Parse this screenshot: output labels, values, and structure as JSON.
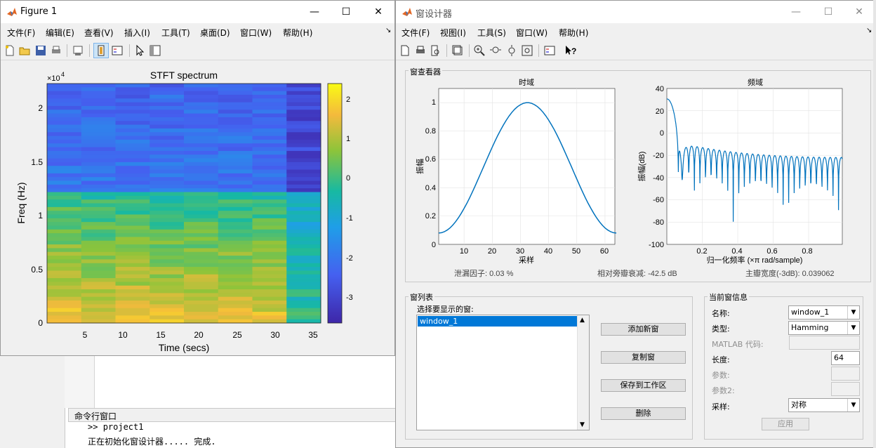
{
  "figure": {
    "title": "Figure 1",
    "menus": [
      "文件(F)",
      "编辑(E)",
      "查看(V)",
      "插入(I)",
      "工具(T)",
      "桌面(D)",
      "窗口(W)",
      "帮助(H)"
    ],
    "chart_data": {
      "type": "heatmap",
      "title": "STFT spectrum",
      "xlabel": "Time (secs)",
      "ylabel": "Freq (Hz)",
      "y_exponent_label": "×10",
      "y_exponent_power": "4",
      "xticks": [
        "5",
        "10",
        "15",
        "20",
        "25",
        "30",
        "35"
      ],
      "yticks": [
        "0",
        "0.5",
        "1",
        "1.5",
        "2"
      ],
      "colorbar_ticks": [
        "2",
        "1",
        "0",
        "-1",
        "-2",
        "-3"
      ]
    }
  },
  "designer": {
    "title": "窗设计器",
    "menus": [
      "文件(F)",
      "视图(I)",
      "工具(S)",
      "窗口(W)",
      "帮助(H)"
    ],
    "viewer": {
      "group_label": "窗查看器",
      "time_title": "时域",
      "freq_title": "频域",
      "time_ylabel": "振幅",
      "time_xlabel": "采样",
      "freq_ylabel": "振幅(dB)",
      "freq_xlabel": "归一化频率 (×π rad/sample)",
      "time_xticks": [
        "10",
        "20",
        "30",
        "40",
        "50",
        "60"
      ],
      "time_yticks": [
        "0",
        "0.2",
        "0.4",
        "0.6",
        "0.8",
        "1"
      ],
      "freq_xticks": [
        "0.2",
        "0.4",
        "0.6",
        "0.8"
      ],
      "freq_yticks": [
        "40",
        "20",
        "0",
        "-20",
        "-40",
        "-60",
        "-80",
        "-100"
      ],
      "leakage": "泄漏因子: 0.03 %",
      "sidelobe": "相对旁瓣衰减: -42.5 dB",
      "mainlobe": "主瓣宽度(-3dB): 0.039062"
    },
    "window_list": {
      "group_label": "窗列表",
      "select_label": "选择要显示的窗:",
      "items": [
        "window_1"
      ],
      "add_label": "添加新窗",
      "copy_label": "复制窗",
      "save_label": "保存到工作区",
      "delete_label": "删除"
    },
    "current_info": {
      "group_label": "当前窗信息",
      "name_label": "名称:",
      "name_value": "window_1",
      "type_label": "类型:",
      "type_value": "Hamming",
      "matlab_label": "MATLAB 代码:",
      "length_label": "长度:",
      "length_value": "64",
      "param_label": "参数:",
      "param2_label": "参数2:",
      "sampling_label": "采样:",
      "sampling_value": "对称",
      "apply_label": "应用"
    }
  },
  "command_window": {
    "title": "命令行窗口",
    "prompt": ">>",
    "command": "project1",
    "output": "正在初始化窗设计器..... 完成."
  }
}
